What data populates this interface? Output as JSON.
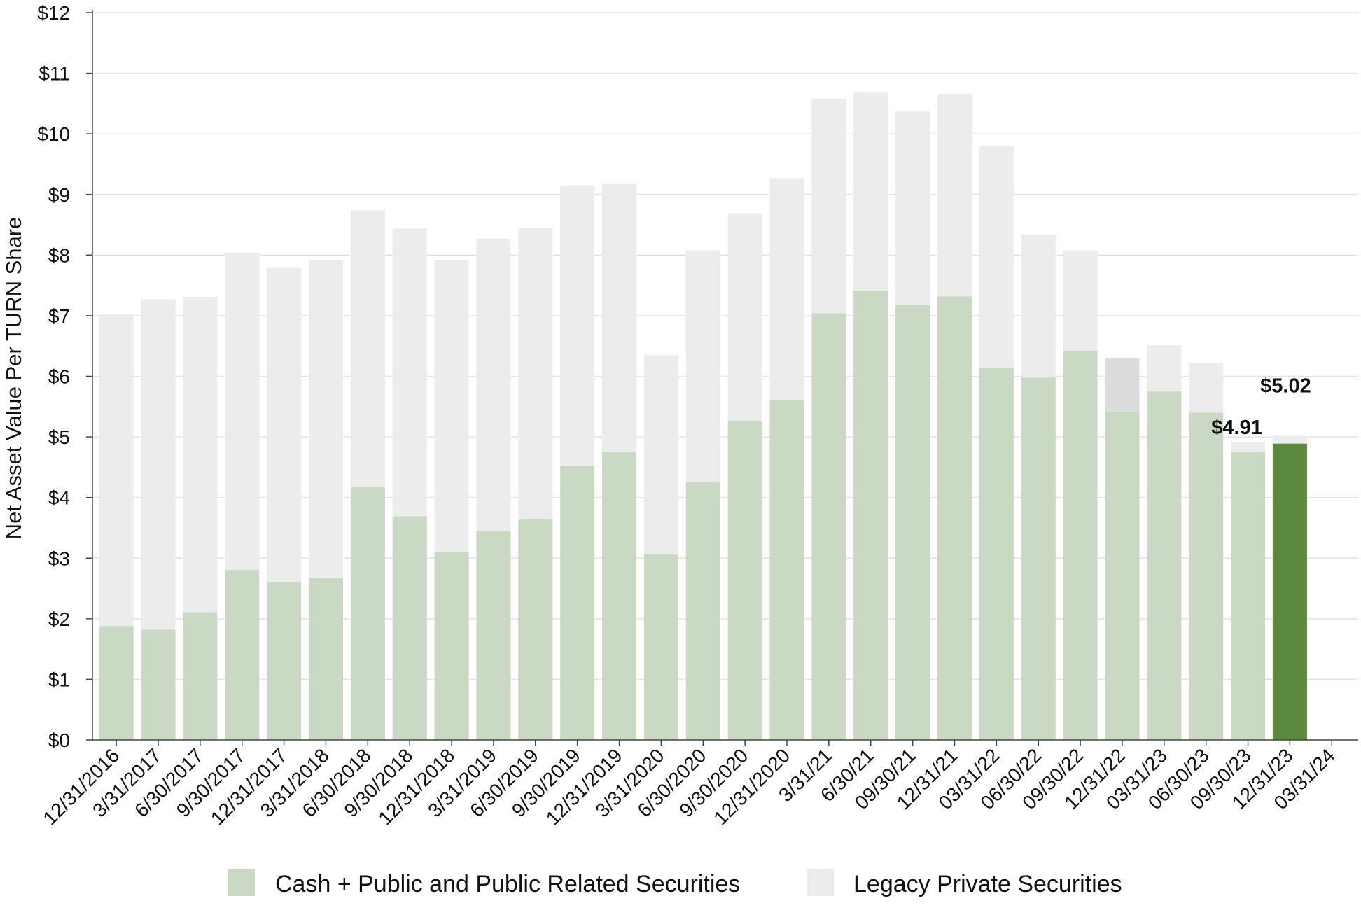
{
  "chart_data": {
    "type": "bar",
    "stacked": true,
    "title": "",
    "xlabel": "",
    "ylabel": "Net Asset Value Per TURN Share",
    "ylim": [
      0,
      12
    ],
    "y_ticks": [
      "$0",
      "$1",
      "$2",
      "$3",
      "$4",
      "$5",
      "$6",
      "$7",
      "$8",
      "$9",
      "$10",
      "$11",
      "$12"
    ],
    "grid": true,
    "legend_position": "bottom-center",
    "categories": [
      "12/31/2016",
      "3/31/2017",
      "6/30/2017",
      "9/30/2017",
      "12/31/2017",
      "3/31/2018",
      "6/30/2018",
      "9/30/2018",
      "12/31/2018",
      "3/31/2019",
      "6/30/2019",
      "9/30/2019",
      "12/31/2019",
      "3/31/2020",
      "6/30/2020",
      "9/30/2020",
      "12/31/2020",
      "3/31/21",
      "6/30/21",
      "09/30/21",
      "12/31/21",
      "03/31/22",
      "06/30/22",
      "09/30/22",
      "12/31/22",
      "03/31/23",
      "06/30/23",
      "09/30/23",
      "12/31/23",
      "03/31/24"
    ],
    "series": [
      {
        "name": "Cash + Public and Public Related Securities",
        "color": "#cad9c3",
        "values": [
          1.88,
          1.82,
          2.11,
          2.81,
          2.6,
          2.67,
          4.17,
          3.69,
          3.11,
          3.45,
          3.64,
          4.52,
          4.75,
          3.06,
          4.25,
          5.26,
          5.61,
          7.04,
          7.41,
          7.18,
          7.32,
          6.14,
          5.98,
          6.42,
          5.42,
          5.75,
          5.4,
          4.75,
          4.89,
          null
        ]
      },
      {
        "name": "Legacy Private Securities",
        "color": "#ececec",
        "values": [
          5.15,
          5.45,
          5.2,
          5.23,
          5.19,
          5.25,
          4.57,
          4.75,
          4.81,
          4.82,
          4.81,
          4.63,
          4.42,
          3.29,
          3.83,
          3.43,
          3.66,
          3.54,
          3.27,
          3.19,
          3.34,
          3.66,
          2.36,
          1.66,
          0.88,
          0.76,
          0.82,
          0.16,
          0.13,
          null
        ]
      }
    ],
    "highlights": [
      {
        "category": "12/31/22",
        "series": "Legacy Private Securities",
        "color": "#dcdcdc"
      },
      {
        "category": "12/31/23",
        "series": "Cash + Public and Public Related Securities",
        "color": "#5b8a3f"
      }
    ],
    "annotations": [
      {
        "category": "09/30/23",
        "value": 4.91,
        "text": "$4.91"
      },
      {
        "category": "12/31/23",
        "value": 5.02,
        "text": "$5.02"
      }
    ]
  }
}
